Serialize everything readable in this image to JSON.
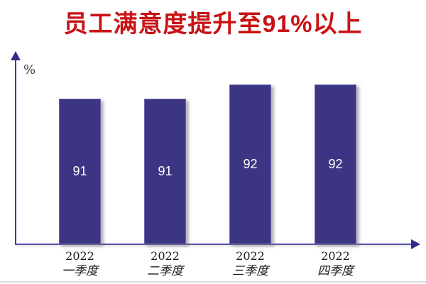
{
  "title": {
    "text": "员工满意度提升至91%以上",
    "color": "#C91214"
  },
  "chart_data": {
    "type": "bar",
    "categories": [
      {
        "year": "2022",
        "quarter": "一季度"
      },
      {
        "year": "2022",
        "quarter": "二季度"
      },
      {
        "year": "2022",
        "quarter": "三季度"
      },
      {
        "year": "2022",
        "quarter": "四季度"
      }
    ],
    "values": [
      91,
      91,
      92,
      92
    ],
    "data_labels": [
      "91",
      "91",
      "92",
      "92"
    ],
    "title": "员工满意度提升至91%以上",
    "xlabel": "",
    "ylabel": "%",
    "ylim": [
      81,
      94
    ],
    "grid": false,
    "legend": false,
    "bar_color": "#3B3583",
    "bar_border_color": "#6D66AE",
    "data_label_color": "#FFFFFF",
    "axis_color": "#433A9A",
    "title_color": "#C91214"
  }
}
